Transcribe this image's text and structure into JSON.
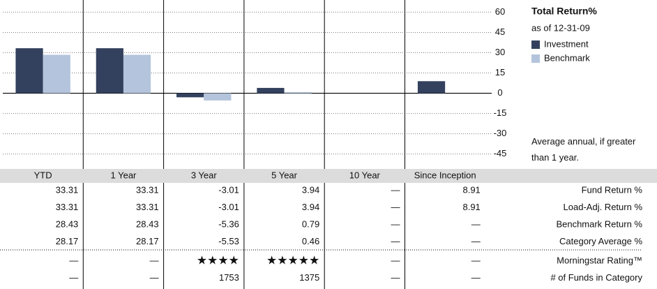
{
  "chart_data": {
    "type": "bar",
    "title": "Total Return%",
    "subtitle": "as of 12-31-09",
    "note": "Average annual, if greater than 1 year.",
    "categories": [
      "YTD",
      "1 Year",
      "3 Year",
      "5 Year",
      "10 Year",
      "Since Inception"
    ],
    "series": [
      {
        "name": "Investment",
        "color": "#34415e",
        "values": [
          33.31,
          33.31,
          -3.01,
          3.94,
          null,
          8.91
        ]
      },
      {
        "name": "Benchmark",
        "color": "#b4c4dc",
        "values": [
          28.43,
          28.43,
          -5.36,
          0.79,
          null,
          null
        ]
      }
    ],
    "ylim": [
      -55,
      69
    ],
    "yticks": [
      60,
      45,
      30,
      15,
      0,
      -15,
      -30,
      -45
    ],
    "grid": true
  },
  "table": {
    "rows": [
      {
        "label": "Fund Return %",
        "cells": [
          33.31,
          33.31,
          -3.01,
          3.94,
          "—",
          8.91
        ]
      },
      {
        "label": "Load-Adj. Return %",
        "cells": [
          33.31,
          33.31,
          -3.01,
          3.94,
          "—",
          8.91
        ]
      },
      {
        "label": "Benchmark Return %",
        "cells": [
          28.43,
          28.43,
          -5.36,
          0.79,
          "—",
          "—"
        ]
      },
      {
        "label": "Category Average %",
        "cells": [
          28.17,
          28.17,
          -5.53,
          0.46,
          "—",
          "—"
        ]
      },
      {
        "label": "Morningstar Rating™",
        "cells": [
          "—",
          "—",
          "★★★★",
          "★★★★★",
          "—",
          "—"
        ]
      },
      {
        "label": "# of Funds in Category",
        "cells": [
          "—",
          "—",
          1753,
          1375,
          "—",
          "—"
        ]
      }
    ]
  }
}
